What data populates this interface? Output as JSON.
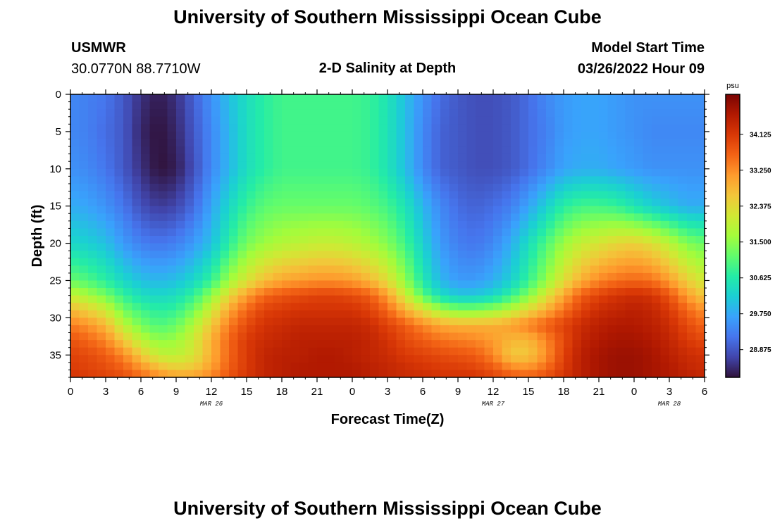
{
  "header": {
    "title": "University of Southern Mississippi Ocean Cube",
    "station": "USMWR",
    "coords": "30.0770N  88.7710W",
    "subtitle": "2-D Salinity at Depth",
    "model_start_label": "Model Start Time",
    "model_start_value": "03/26/2022 Hour 09"
  },
  "footer": {
    "title": "University of Southern Mississippi Ocean Cube"
  },
  "colors": {
    "ramp": [
      "#30123b",
      "#4145ab",
      "#4675ed",
      "#39a2fc",
      "#1bcfd4",
      "#24eca6",
      "#61fc6c",
      "#a4fc3b",
      "#d1e834",
      "#f3c63a",
      "#fe9b2d",
      "#f36315",
      "#d93806",
      "#b11901",
      "#7a0403"
    ]
  },
  "chart_data": {
    "type": "heatmap",
    "title": "2-D Salinity at Depth",
    "xlabel": "Forecast Time(Z)",
    "ylabel": "Depth (ft)",
    "x_unit": "hours since 03/26 00Z",
    "xlim": [
      0,
      54
    ],
    "ylim": [
      0,
      38
    ],
    "x_ticks": [
      0,
      3,
      6,
      9,
      12,
      15,
      18,
      21,
      24,
      27,
      30,
      33,
      36,
      39,
      42,
      45,
      48,
      51,
      54
    ],
    "x_tick_labels": [
      "0",
      "3",
      "6",
      "9",
      "12",
      "15",
      "18",
      "21",
      "0",
      "3",
      "6",
      "9",
      "12",
      "15",
      "18",
      "21",
      "0",
      "3",
      "6"
    ],
    "date_labels": [
      {
        "x": 12,
        "label": "MAR 26"
      },
      {
        "x": 36,
        "label": "MAR 27"
      },
      {
        "x": 51,
        "label": "MAR 28"
      }
    ],
    "y_ticks": [
      0,
      5,
      10,
      15,
      20,
      25,
      30,
      35
    ],
    "colorbar": {
      "unit": "psu",
      "min": 28.2,
      "max": 35.1,
      "tick_values": [
        28.875,
        29.75,
        30.625,
        31.5,
        32.375,
        33.25,
        34.125
      ],
      "tick_labels": [
        "28.875",
        "29.750",
        "30.625",
        "31.500",
        "32.375",
        "33.250",
        "34.125"
      ]
    },
    "grid": {
      "x": [
        0,
        1.5,
        3,
        4.5,
        6,
        7.5,
        9,
        10.5,
        12,
        13.5,
        15,
        16.5,
        18,
        19.5,
        21,
        22.5,
        24,
        25.5,
        27,
        28.5,
        30,
        31.5,
        33,
        34.5,
        36,
        37.5,
        39,
        40.5,
        42,
        43.5,
        45,
        46.5,
        48,
        49.5,
        51,
        52.5,
        54
      ],
      "depths": [
        0,
        5,
        10,
        15,
        20,
        25,
        27,
        29,
        31,
        33,
        35,
        37,
        38
      ],
      "salinity": [
        [
          29.4,
          29.3,
          29.2,
          28.9,
          28.5,
          28.3,
          28.5,
          29.0,
          29.5,
          30.0,
          30.4,
          30.7,
          30.9,
          30.9,
          30.9,
          30.9,
          30.9,
          30.8,
          30.5,
          30.0,
          29.5,
          29.1,
          28.9,
          28.8,
          28.8,
          28.9,
          29.1,
          29.4,
          29.6,
          29.7,
          29.7,
          29.6,
          29.5,
          29.5,
          29.5,
          29.5,
          29.5
        ],
        [
          29.4,
          29.3,
          29.1,
          28.9,
          28.4,
          28.2,
          28.4,
          28.9,
          29.4,
          29.9,
          30.4,
          30.7,
          30.9,
          30.9,
          30.9,
          30.9,
          30.9,
          30.8,
          30.5,
          30.0,
          29.4,
          29.0,
          28.9,
          28.8,
          28.8,
          28.9,
          29.1,
          29.3,
          29.6,
          29.7,
          29.7,
          29.6,
          29.5,
          29.4,
          29.4,
          29.4,
          29.4
        ],
        [
          29.5,
          29.4,
          29.2,
          28.9,
          28.5,
          28.2,
          28.3,
          28.8,
          29.4,
          29.9,
          30.4,
          30.7,
          30.9,
          30.9,
          30.9,
          30.9,
          30.9,
          30.8,
          30.5,
          30.0,
          29.4,
          29.0,
          28.9,
          28.8,
          28.8,
          28.9,
          29.1,
          29.4,
          29.7,
          29.8,
          29.8,
          29.7,
          29.6,
          29.5,
          29.5,
          29.5,
          29.5
        ],
        [
          29.8,
          29.7,
          29.5,
          29.2,
          28.8,
          28.6,
          28.7,
          29.1,
          29.7,
          30.3,
          30.8,
          31.1,
          31.2,
          31.2,
          31.2,
          31.2,
          31.2,
          31.1,
          30.9,
          30.5,
          29.9,
          29.4,
          29.1,
          29.0,
          29.1,
          29.3,
          29.7,
          30.2,
          30.7,
          30.9,
          30.9,
          30.8,
          30.5,
          30.2,
          30.0,
          29.8,
          29.8
        ],
        [
          30.3,
          30.2,
          30.0,
          29.6,
          29.3,
          29.2,
          29.3,
          29.6,
          30.0,
          30.7,
          31.3,
          31.6,
          31.8,
          31.9,
          32.0,
          32.0,
          31.9,
          31.7,
          31.4,
          30.9,
          30.2,
          29.6,
          29.3,
          29.2,
          29.4,
          29.8,
          30.4,
          31.0,
          31.6,
          32.0,
          32.2,
          32.4,
          32.5,
          32.3,
          31.9,
          31.4,
          31.2
        ],
        [
          31.2,
          31.0,
          30.7,
          30.3,
          30.0,
          29.9,
          30.0,
          30.3,
          30.8,
          31.6,
          32.2,
          32.7,
          33.0,
          33.1,
          33.2,
          33.2,
          33.1,
          32.8,
          32.3,
          31.5,
          30.6,
          29.9,
          29.6,
          29.6,
          29.8,
          30.2,
          30.8,
          31.5,
          32.3,
          32.9,
          33.3,
          33.5,
          33.6,
          33.5,
          33.1,
          32.5,
          32.1
        ],
        [
          32.0,
          31.7,
          31.3,
          30.8,
          30.4,
          30.3,
          30.4,
          30.8,
          31.5,
          32.4,
          33.1,
          33.6,
          33.8,
          33.9,
          34.0,
          34.0,
          33.9,
          33.7,
          33.1,
          32.1,
          31.1,
          30.4,
          30.1,
          30.1,
          30.3,
          30.8,
          31.4,
          32.2,
          33.0,
          33.7,
          34.0,
          34.2,
          34.3,
          34.2,
          33.8,
          33.1,
          32.6
        ],
        [
          32.8,
          32.5,
          32.1,
          31.3,
          30.9,
          30.7,
          30.8,
          31.3,
          32.1,
          33.0,
          33.6,
          34.0,
          34.1,
          34.2,
          34.2,
          34.2,
          34.2,
          34.0,
          33.6,
          32.9,
          32.3,
          31.7,
          31.4,
          31.4,
          31.6,
          31.9,
          32.4,
          32.9,
          33.5,
          34.0,
          34.3,
          34.4,
          34.5,
          34.4,
          34.1,
          33.6,
          33.2
        ],
        [
          33.4,
          33.2,
          32.8,
          31.9,
          31.3,
          31.0,
          31.2,
          31.8,
          32.6,
          33.4,
          33.9,
          34.2,
          34.3,
          34.4,
          34.4,
          34.4,
          34.4,
          34.3,
          34.0,
          33.7,
          33.3,
          33.0,
          32.9,
          32.9,
          32.9,
          33.1,
          33.4,
          33.7,
          34.0,
          34.3,
          34.5,
          34.6,
          34.6,
          34.5,
          34.3,
          33.9,
          33.6
        ],
        [
          33.8,
          33.6,
          33.3,
          32.6,
          31.9,
          31.5,
          31.6,
          32.1,
          32.9,
          33.6,
          34.1,
          34.3,
          34.4,
          34.5,
          34.5,
          34.5,
          34.5,
          34.4,
          34.2,
          33.9,
          33.7,
          33.5,
          33.4,
          33.3,
          33.1,
          32.8,
          32.8,
          33.3,
          33.9,
          34.4,
          34.6,
          34.7,
          34.7,
          34.6,
          34.4,
          34.1,
          33.9
        ],
        [
          34.0,
          33.9,
          33.7,
          33.3,
          32.6,
          32.0,
          31.9,
          32.2,
          32.9,
          33.6,
          34.1,
          34.4,
          34.5,
          34.5,
          34.6,
          34.6,
          34.5,
          34.4,
          34.3,
          34.1,
          34.0,
          33.9,
          33.8,
          33.7,
          33.3,
          32.6,
          32.6,
          33.2,
          34.0,
          34.5,
          34.7,
          34.8,
          34.8,
          34.7,
          34.5,
          34.3,
          34.2
        ],
        [
          34.1,
          34.0,
          33.9,
          33.7,
          33.3,
          32.9,
          32.6,
          32.7,
          33.1,
          33.7,
          34.1,
          34.4,
          34.5,
          34.6,
          34.6,
          34.6,
          34.6,
          34.5,
          34.4,
          34.3,
          34.2,
          34.1,
          34.1,
          34.0,
          33.8,
          33.4,
          33.3,
          33.6,
          34.1,
          34.5,
          34.7,
          34.8,
          34.8,
          34.7,
          34.6,
          34.4,
          34.3
        ],
        [
          34.2,
          34.1,
          34.0,
          33.9,
          33.6,
          33.3,
          33.1,
          33.1,
          33.4,
          33.8,
          34.2,
          34.4,
          34.5,
          34.6,
          34.6,
          34.6,
          34.6,
          34.5,
          34.4,
          34.3,
          34.3,
          34.2,
          34.2,
          34.2,
          34.0,
          33.8,
          33.7,
          33.9,
          34.2,
          34.5,
          34.7,
          34.8,
          34.8,
          34.7,
          34.6,
          34.5,
          34.4
        ]
      ]
    }
  }
}
